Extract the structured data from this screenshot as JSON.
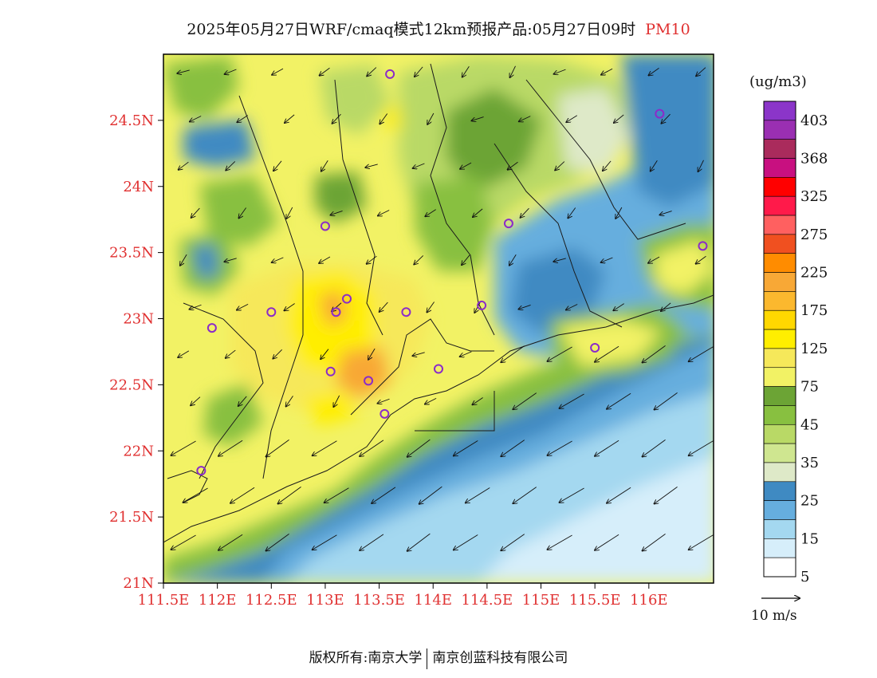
{
  "title": {
    "main": "2025年05月27日WRF/cmaq模式12km预报产品:05月27日09时",
    "pollutant": "PM10"
  },
  "map": {
    "lat_ticks": [
      "24.5N",
      "24N",
      "23.5N",
      "23N",
      "22.5N",
      "22N",
      "21.5N",
      "21N"
    ],
    "lon_ticks": [
      "111.5E",
      "112E",
      "112.5E",
      "113E",
      "113.5E",
      "114E",
      "114.5E",
      "115E",
      "115.5E",
      "116E"
    ],
    "lon_range": [
      111.5,
      116.6
    ],
    "lat_range": [
      21.0,
      25.0
    ],
    "tick_color": "#e03030",
    "wind": {
      "speed": "10 m/s",
      "direction": "northeasterly"
    },
    "stations": [
      [
        113.6,
        24.85
      ],
      [
        116.1,
        24.55
      ],
      [
        113.0,
        23.7
      ],
      [
        114.7,
        23.72
      ],
      [
        116.5,
        23.55
      ],
      [
        112.5,
        23.05
      ],
      [
        113.1,
        23.05
      ],
      [
        113.2,
        23.15
      ],
      [
        113.75,
        23.05
      ],
      [
        114.45,
        23.1
      ],
      [
        111.95,
        22.93
      ],
      [
        115.5,
        22.78
      ],
      [
        113.05,
        22.6
      ],
      [
        113.4,
        22.53
      ],
      [
        114.05,
        22.62
      ],
      [
        113.55,
        22.28
      ],
      [
        111.85,
        21.85
      ]
    ]
  },
  "legend": {
    "unit": "(ug/m3)",
    "labels": [
      "403",
      "368",
      "325",
      "275",
      "225",
      "175",
      "125",
      "75",
      "45",
      "35",
      "25",
      "15",
      "5"
    ],
    "colors": [
      "#8b35c9",
      "#9a2fb2",
      "#aa2b5c",
      "#c81080",
      "#ff0000",
      "#ff1a4a",
      "#ff6060",
      "#f05020",
      "#ff8c00",
      "#f8a836",
      "#fbb82e",
      "#ffd800",
      "#ffee00",
      "#f6e85a",
      "#f2f265",
      "#6ca435",
      "#88c040",
      "#b9d966",
      "#cfe690",
      "#dee9c8",
      "#3f8ac2",
      "#66aede",
      "#a4d8f0",
      "#d6eefa",
      "#ffffff"
    ]
  },
  "footer": {
    "left": "版权所有:南京大学",
    "right": "南京创蓝科技有限公司"
  }
}
